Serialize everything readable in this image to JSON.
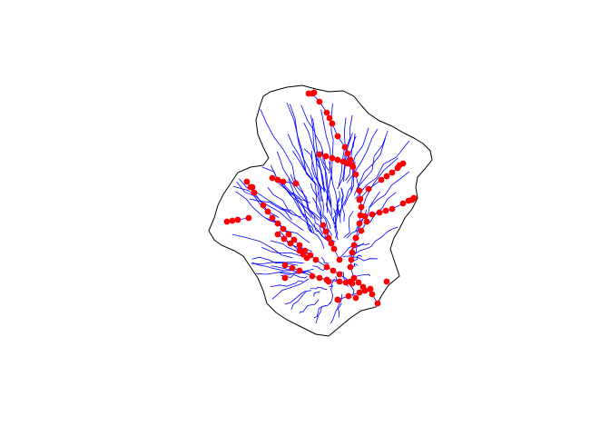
{
  "map": {
    "background_color": "#ffffff",
    "boundary_color": "#000000",
    "stream_color": "#0000ff",
    "point_color": "#ff0000",
    "layers": [
      "watershed-boundary",
      "stream-network",
      "sample-points"
    ]
  }
}
